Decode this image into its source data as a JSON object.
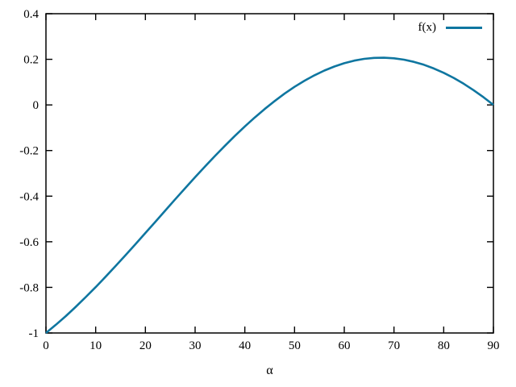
{
  "chart_data": {
    "type": "line",
    "title": "",
    "xlabel": "α",
    "ylabel": "",
    "xlim": [
      0,
      90
    ],
    "ylim": [
      -1,
      0.4
    ],
    "xtick_values": [
      0,
      10,
      20,
      30,
      40,
      50,
      60,
      70,
      80,
      90
    ],
    "xtick_labels": [
      "0",
      "10",
      "20",
      "30",
      "40",
      "50",
      "60",
      "70",
      "80",
      "90"
    ],
    "ytick_values": [
      -1,
      -0.8,
      -0.6,
      -0.4,
      -0.2,
      0,
      0.2,
      0.4
    ],
    "ytick_labels": [
      "-1",
      "-0.8",
      "-0.6",
      "-0.4",
      "-0.2",
      "0",
      "0.2",
      "0.4"
    ],
    "grid": false,
    "legend_position": "top-right-inside",
    "series": [
      {
        "name": "f(x)",
        "color": "#0f76a0",
        "points": [
          [
            0,
            -1.0
          ],
          [
            2,
            -0.9639
          ],
          [
            4,
            -0.9256
          ],
          [
            6,
            -0.8851
          ],
          [
            8,
            -0.8428
          ],
          [
            10,
            -0.7988
          ],
          [
            12,
            -0.7534
          ],
          [
            14,
            -0.7067
          ],
          [
            16,
            -0.659
          ],
          [
            18,
            -0.6106
          ],
          [
            20,
            -0.5616
          ],
          [
            22,
            -0.5123
          ],
          [
            24,
            -0.463
          ],
          [
            26,
            -0.4138
          ],
          [
            28,
            -0.3651
          ],
          [
            30,
            -0.317
          ],
          [
            32,
            -0.2698
          ],
          [
            34,
            -0.2237
          ],
          [
            36,
            -0.179
          ],
          [
            38,
            -0.1358
          ],
          [
            40,
            -0.0944
          ],
          [
            42,
            -0.055
          ],
          [
            44,
            -0.0178
          ],
          [
            46,
            0.0172
          ],
          [
            48,
            0.0495
          ],
          [
            50,
            0.0792
          ],
          [
            52,
            0.1061
          ],
          [
            54,
            0.13
          ],
          [
            56,
            0.1509
          ],
          [
            58,
            0.1686
          ],
          [
            60,
            0.183
          ],
          [
            62,
            0.1941
          ],
          [
            64,
            0.2019
          ],
          [
            66,
            0.2061
          ],
          [
            68,
            0.207
          ],
          [
            70,
            0.2044
          ],
          [
            72,
            0.1984
          ],
          [
            74,
            0.189
          ],
          [
            76,
            0.1762
          ],
          [
            78,
            0.1601
          ],
          [
            80,
            0.1409
          ],
          [
            82,
            0.1185
          ],
          [
            84,
            0.093
          ],
          [
            86,
            0.0648
          ],
          [
            88,
            0.0337
          ],
          [
            90,
            0.0
          ]
        ]
      }
    ]
  },
  "colors": {
    "background": "#ffffff",
    "axis": "#000000",
    "tick_text": "#000000",
    "line": "#0f76a0"
  }
}
